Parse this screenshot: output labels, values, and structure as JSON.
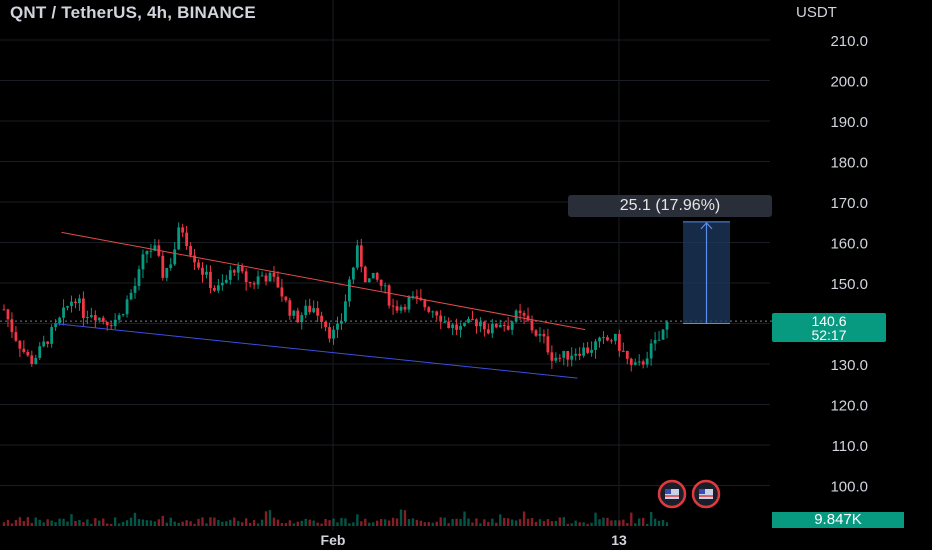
{
  "header": {
    "title": "QNT / TetherUS, 4h, BINANCE"
  },
  "price_axis": {
    "unit": "USDT",
    "ticks": [
      "210.0",
      "200.0",
      "190.0",
      "180.0",
      "170.0",
      "160.0",
      "150.0",
      "140.0",
      "130.0",
      "120.0",
      "110.0",
      "100.0"
    ]
  },
  "time_axis": {
    "labels": [
      "Feb",
      "13"
    ]
  },
  "current_price": {
    "value": "140.6",
    "countdown": "52:17"
  },
  "volume": {
    "value": "9.847K"
  },
  "measure": {
    "label": "25.1 (17.96%)"
  },
  "colors": {
    "up": "#089981",
    "down": "#f23645",
    "background": "#000000",
    "upper_trendline": "#e64a4a",
    "lower_trendline": "#3b4ee0",
    "measure_fill": "#1e3a5f"
  },
  "chart_data": {
    "type": "candlestick",
    "symbol": "QNT / TetherUS",
    "interval": "4h",
    "exchange": "BINANCE",
    "ylabel": "USDT",
    "ylim": [
      95,
      215
    ],
    "ohlc_anchor_closes": [
      143.5,
      138.0,
      134.0,
      130.5,
      133.0,
      136.5,
      139.5,
      143.5,
      147.0,
      142.5,
      143.0,
      141.0,
      140.5,
      141.5,
      146.0,
      150.0,
      158.0,
      158.5,
      152.0,
      156.0,
      164.5,
      158.5,
      154.5,
      151.0,
      148.0,
      150.0,
      154.0,
      151.5,
      149.5,
      152.0,
      151.5,
      149.5,
      144.5,
      141.0,
      143.0,
      144.0,
      141.5,
      137.0,
      139.0,
      150.0,
      158.0,
      150.5,
      151.0,
      148.5,
      144.0,
      144.5,
      146.0,
      145.0,
      144.0,
      143.0,
      140.0,
      139.0,
      138.5,
      140.5,
      140.5,
      138.0,
      140.5,
      139.5,
      142.0,
      141.0,
      138.0,
      136.0,
      132.0,
      131.5,
      132.5,
      133.5,
      133.5,
      135.0,
      135.5,
      136.5,
      133.0,
      129.0,
      129.5,
      133.5,
      135.5,
      140.0
    ],
    "volume_last": "9.847K",
    "trendlines": [
      {
        "name": "upper",
        "from": [
          0.08,
          162.5
        ],
        "to": [
          0.76,
          138.5
        ]
      },
      {
        "name": "lower",
        "from": [
          0.07,
          140.0
        ],
        "to": [
          0.75,
          126.5
        ]
      }
    ],
    "measure": {
      "from_price": 140.0,
      "to_price": 165.1,
      "change": 25.1,
      "change_pct": 17.96
    },
    "last_price": 140.6,
    "grid": true
  }
}
